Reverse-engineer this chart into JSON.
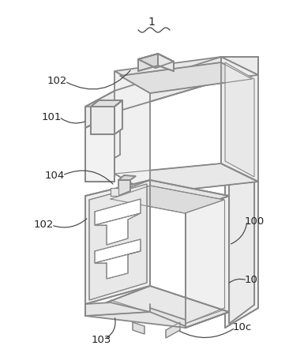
{
  "background_color": "#ffffff",
  "lc": "#888888",
  "lc_dark": "#555555",
  "lw": 1.3,
  "lw_thin": 0.8,
  "fig_width": 3.85,
  "fig_height": 4.47,
  "dpi": 100,
  "label_color": "#222222",
  "label_fontsize": 9.5
}
